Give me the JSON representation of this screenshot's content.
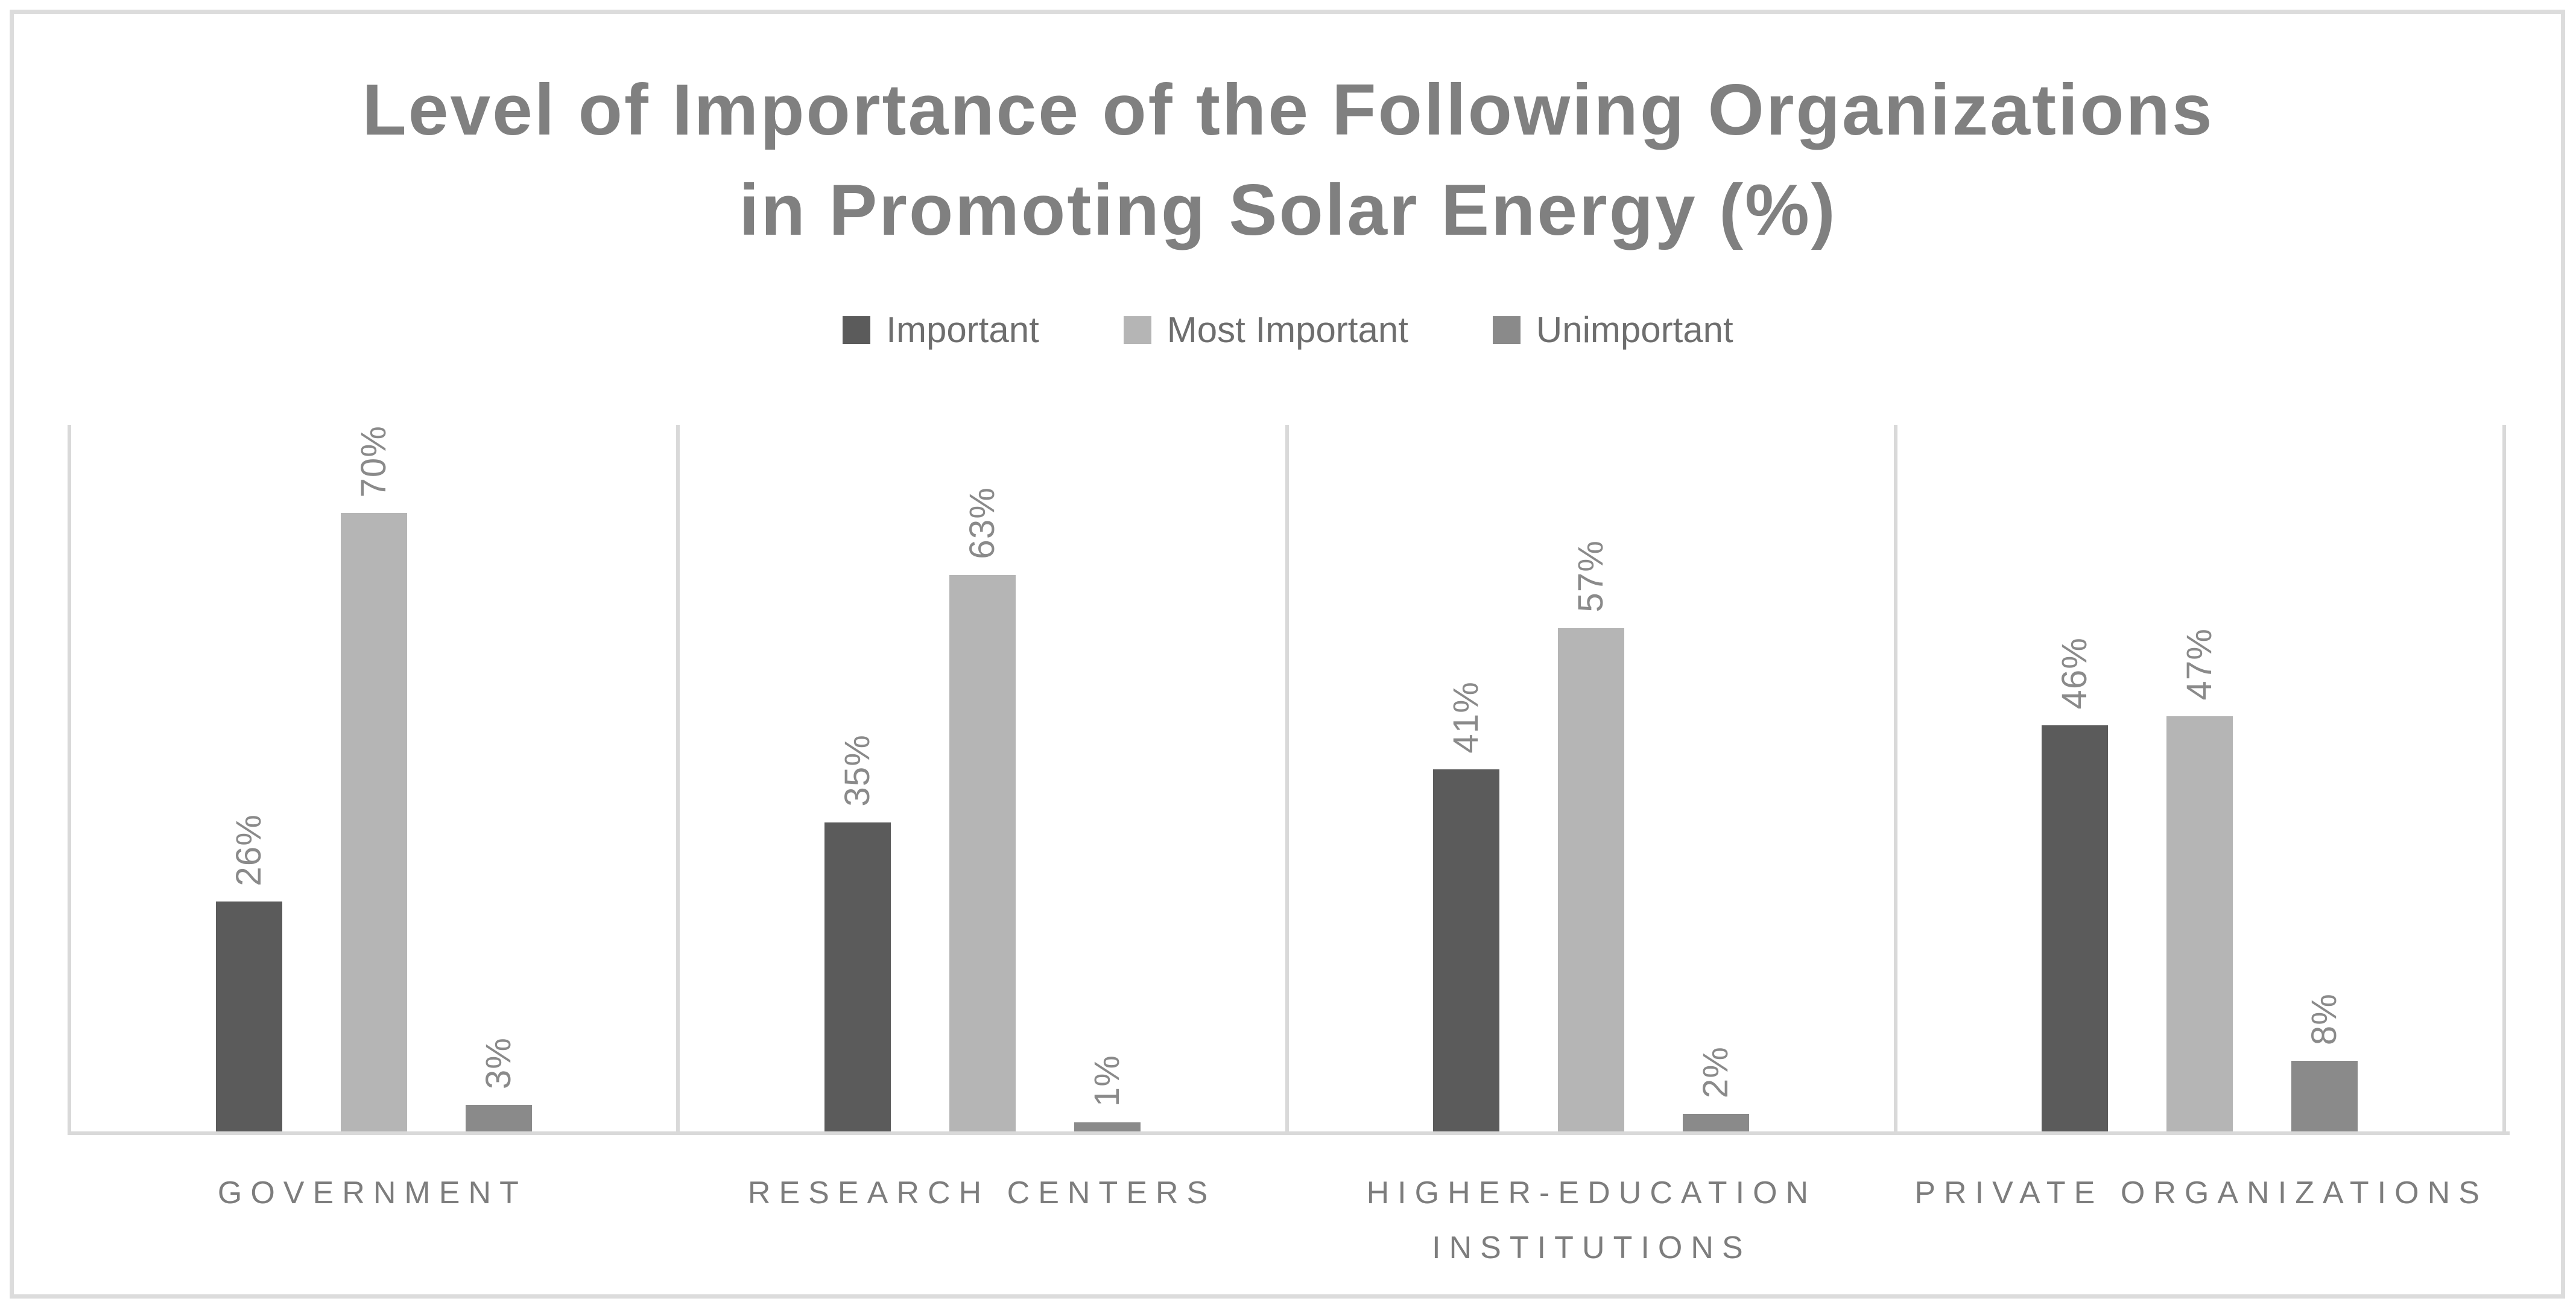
{
  "header": {
    "title_line1": "Level of Importance of the Following Organizations",
    "title_line2": "in Promoting Solar Energy (%)"
  },
  "chart_data": {
    "type": "bar",
    "title": "Level of Importance of the Following Organizations in Promoting Solar Energy (%)",
    "categories": [
      "GOVERNMENT",
      "RESEARCH CENTERS",
      "HIGHER-EDUCATION INSTITUTIONS",
      "PRIVATE ORGANIZATIONS"
    ],
    "category_lines": [
      [
        "GOVERNMENT"
      ],
      [
        "RESEARCH CENTERS"
      ],
      [
        "HIGHER-EDUCATION",
        "INSTITUTIONS"
      ],
      [
        "PRIVATE ORGANIZATIONS"
      ]
    ],
    "series": [
      {
        "name": "Important",
        "color": "#5b5b5b",
        "values": [
          26,
          35,
          41,
          46
        ]
      },
      {
        "name": "Most Important",
        "color": "#b5b5b5",
        "values": [
          70,
          63,
          57,
          47
        ]
      },
      {
        "name": "Unimportant",
        "color": "#8a8a8a",
        "values": [
          3,
          1,
          2,
          8
        ]
      }
    ],
    "value_suffix": "%",
    "ylim": [
      0,
      80
    ],
    "grid": "vertical-panel-separators",
    "legend_position": "top-center",
    "colors": {
      "axis_line": "#d9d9d9",
      "panel_separator": "#d9d9d9",
      "outer_frame": "#dcdcdc",
      "title_text": "#808080",
      "legend_text": "#6e6e6e",
      "data_label_text": "#8a8a8a",
      "category_text": "#7d7d7d",
      "background": "#ffffff"
    }
  }
}
